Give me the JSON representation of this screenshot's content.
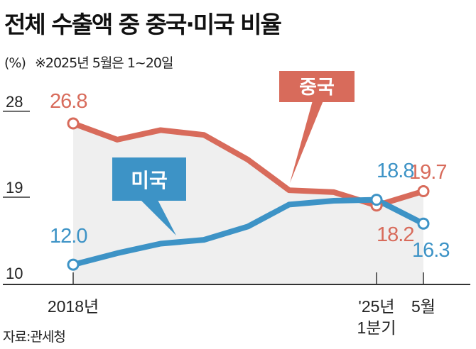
{
  "title": "전체 수출액 중 중국·미국 비율",
  "subtitle_unit": "(%)",
  "subtitle_note": "※2025년 5월은 1~20일",
  "source": "자료:관세청",
  "colors": {
    "china": "#d86b5b",
    "us": "#3d93c6",
    "area": "#efefef"
  },
  "chart_data": {
    "type": "line",
    "categories": [
      "2018년",
      "",
      "",
      "",
      "",
      "",
      "",
      "'25년 1분기",
      "5월"
    ],
    "x_tick_labels": [
      {
        "index": 0,
        "lines": [
          "2018년"
        ]
      },
      {
        "index": 7,
        "lines": [
          "'25년",
          "1분기"
        ]
      },
      {
        "index": 8,
        "lines": [
          "5월"
        ]
      }
    ],
    "ylim": [
      10,
      28
    ],
    "yticks": [
      "28",
      "19",
      "10"
    ],
    "series": [
      {
        "name": "중국",
        "color": "#d86b5b",
        "values": [
          26.8,
          25.1,
          26.1,
          25.6,
          23.0,
          19.8,
          19.6,
          18.2,
          19.7
        ],
        "labels": [
          {
            "index": 0,
            "text": "26.8"
          },
          {
            "index": 7,
            "text": "18.2"
          },
          {
            "index": 8,
            "text": "19.7"
          }
        ]
      },
      {
        "name": "미국",
        "color": "#3d93c6",
        "values": [
          12.0,
          13.2,
          14.2,
          14.6,
          16.0,
          18.3,
          18.7,
          18.8,
          16.3
        ],
        "labels": [
          {
            "index": 0,
            "text": "12.0"
          },
          {
            "index": 7,
            "text": "18.8"
          },
          {
            "index": 8,
            "text": "16.3"
          }
        ]
      }
    ],
    "area_under": "중국",
    "grid": false,
    "legend": "callout labels"
  }
}
